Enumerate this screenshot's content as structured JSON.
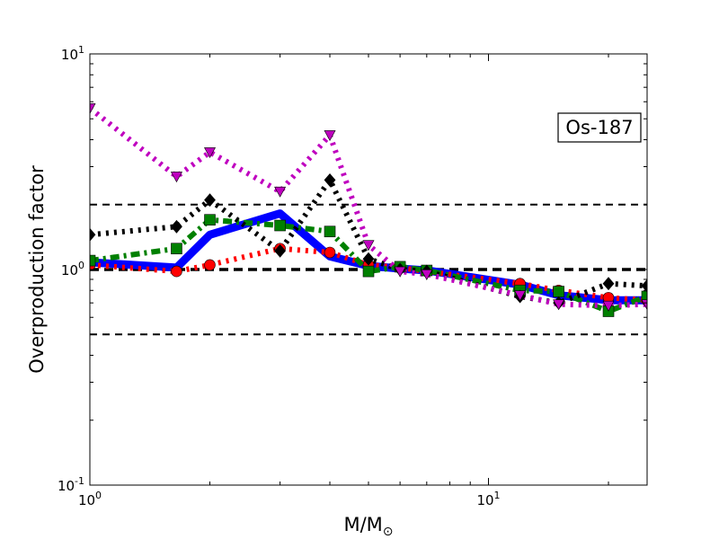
{
  "chart_data": {
    "type": "line",
    "title": "",
    "xlabel": "M/M",
    "xlabel_subscript": "⊙",
    "ylabel": "Overproduction factor",
    "xscale": "log",
    "yscale": "log",
    "xlim": [
      1,
      25
    ],
    "ylim": [
      0.1,
      10
    ],
    "x_ticks": [
      {
        "value": 1,
        "base": "10",
        "exp": "0"
      },
      {
        "value": 10,
        "base": "10",
        "exp": "1"
      }
    ],
    "y_ticks": [
      {
        "value": 0.1,
        "base": "10",
        "exp": "-1"
      },
      {
        "value": 1,
        "base": "10",
        "exp": "0"
      },
      {
        "value": 10,
        "base": "10",
        "exp": "1"
      }
    ],
    "reference_lines": [
      {
        "y": 2.0,
        "style": "dashed",
        "color": "#000000"
      },
      {
        "y": 1.0,
        "style": "dashed-thick",
        "color": "#000000"
      },
      {
        "y": 0.5,
        "style": "dashed",
        "color": "#000000"
      }
    ],
    "legend": {
      "position": "top-right",
      "label": "Os-187"
    },
    "series": [
      {
        "color": "#0000ff",
        "line": "solid",
        "marker": "none",
        "x": [
          1,
          1.65,
          2,
          3,
          4,
          5,
          6,
          7,
          12,
          15,
          20,
          25
        ],
        "y": [
          1.08,
          1.02,
          1.45,
          1.82,
          1.15,
          1.04,
          1.01,
          0.99,
          0.85,
          0.76,
          0.72,
          0.72
        ]
      },
      {
        "color": "#ff0000",
        "line": "dotted",
        "marker": "circle",
        "x": [
          1,
          1.65,
          2,
          3,
          4,
          5,
          6,
          7,
          12,
          15,
          20,
          25
        ],
        "y": [
          1.05,
          0.98,
          1.05,
          1.25,
          1.2,
          1.05,
          1.02,
          0.98,
          0.86,
          0.8,
          0.74,
          0.72
        ]
      },
      {
        "color": "#008000",
        "line": "dashdot",
        "marker": "square",
        "x": [
          1,
          1.65,
          2,
          3,
          4,
          5,
          6,
          7,
          12,
          15,
          20,
          25
        ],
        "y": [
          1.1,
          1.25,
          1.7,
          1.6,
          1.5,
          0.98,
          1.03,
          0.99,
          0.8,
          0.79,
          0.64,
          0.75
        ]
      },
      {
        "color": "#000000",
        "line": "dotted",
        "marker": "diamond",
        "x": [
          1,
          1.65,
          2,
          3,
          4,
          5,
          6,
          7,
          12,
          15,
          20,
          25
        ],
        "y": [
          1.45,
          1.58,
          2.1,
          1.22,
          2.6,
          1.12,
          1.0,
          0.98,
          0.75,
          0.7,
          0.86,
          0.84
        ]
      },
      {
        "color": "#bf00bf",
        "line": "dotted",
        "marker": "triangle-down",
        "x": [
          1,
          1.65,
          2,
          3,
          4,
          5,
          6,
          7,
          12,
          15,
          20,
          25
        ],
        "y": [
          5.6,
          2.7,
          3.5,
          2.3,
          4.2,
          1.3,
          0.98,
          0.95,
          0.76,
          0.69,
          0.68,
          0.69
        ]
      }
    ]
  }
}
